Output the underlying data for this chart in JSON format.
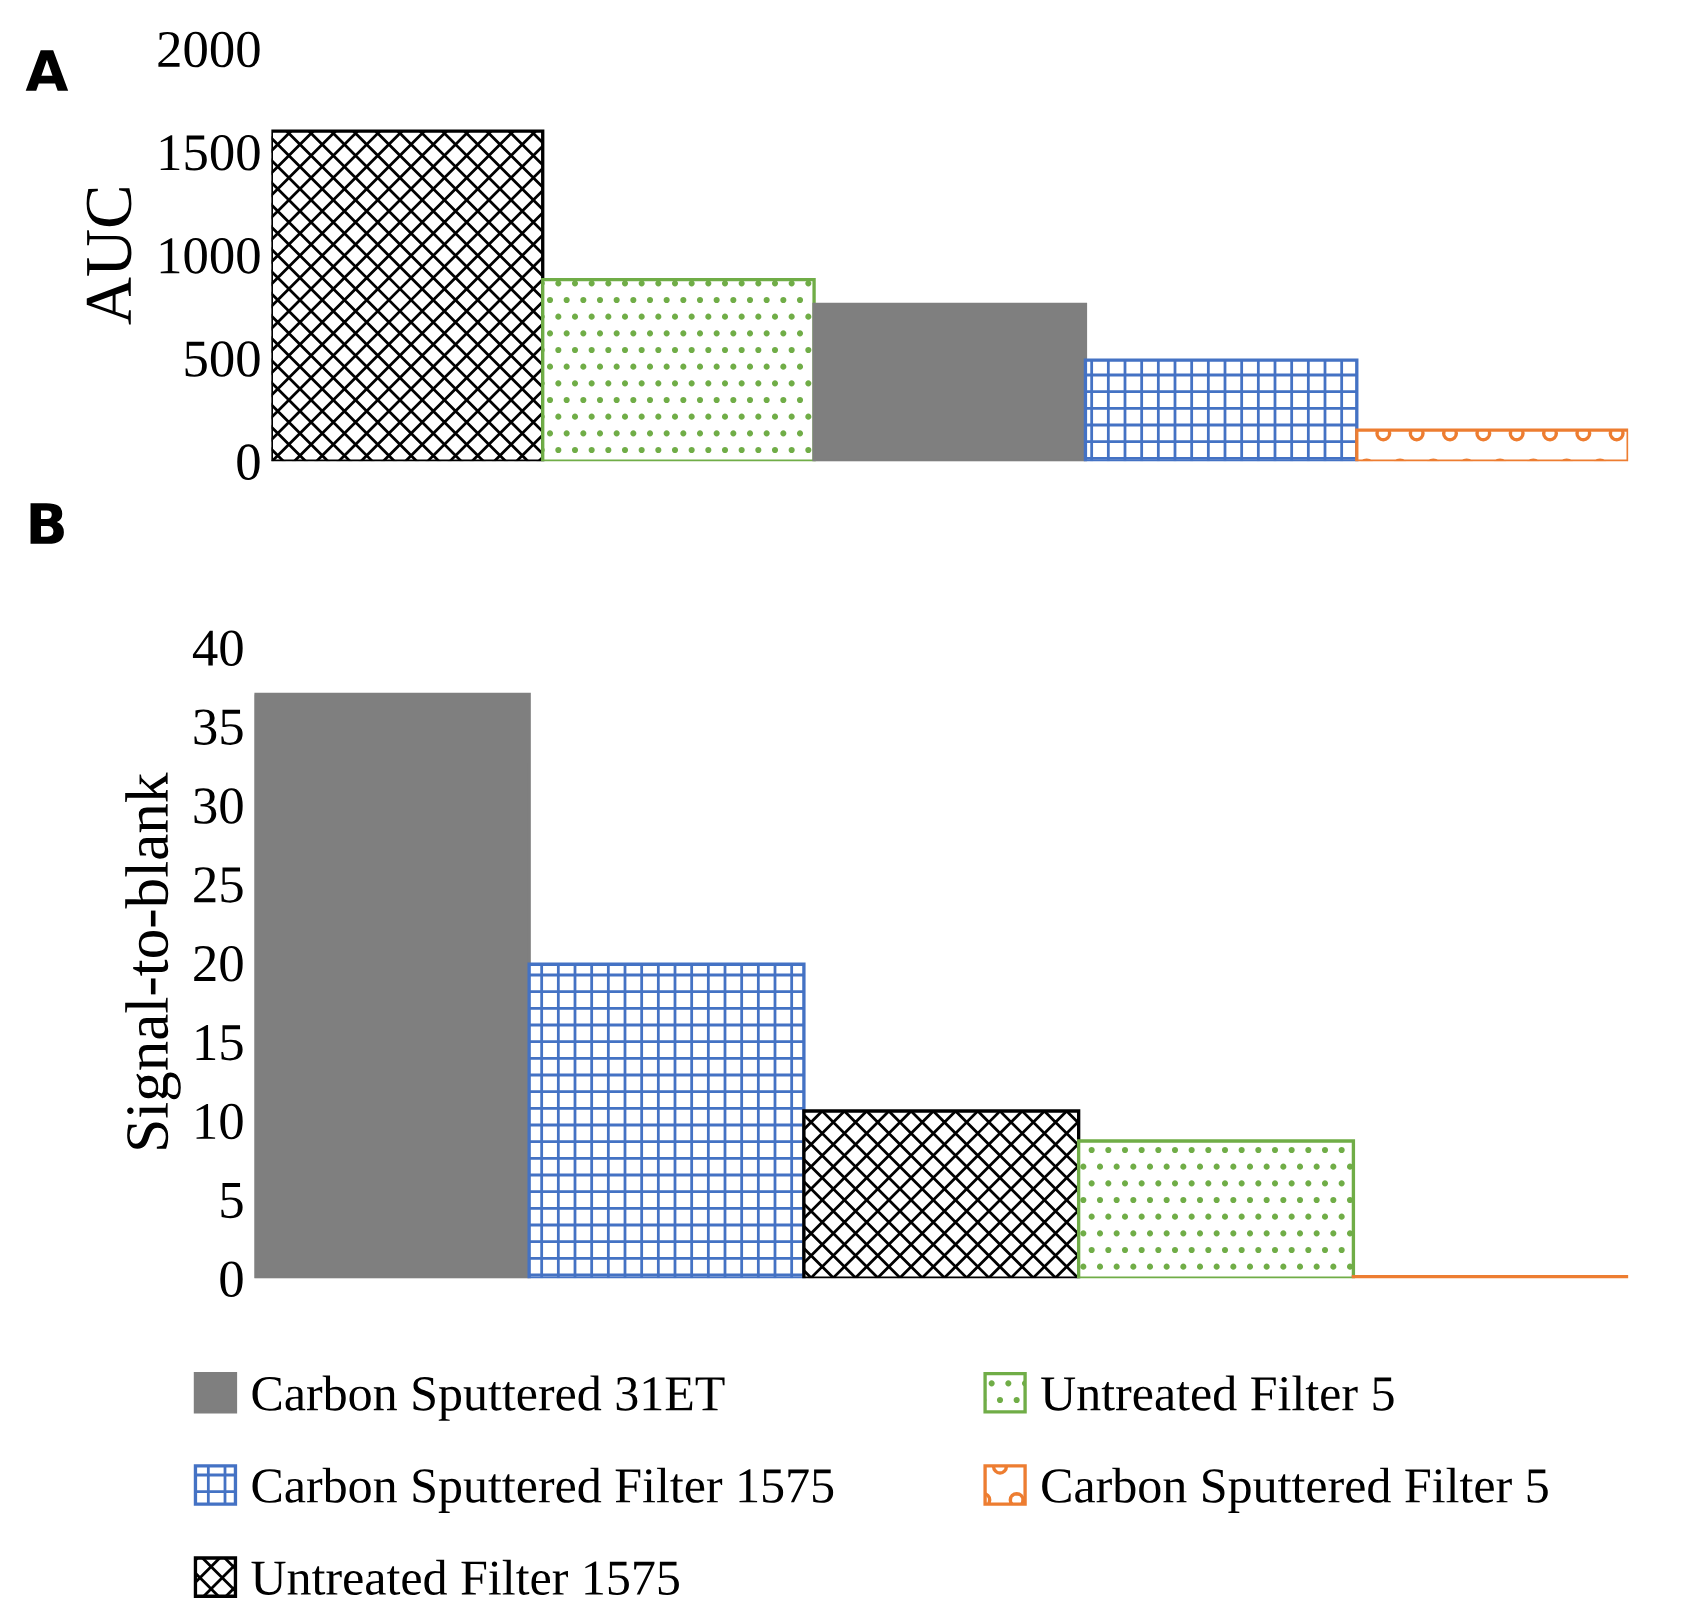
{
  "chart_data": [
    {
      "type": "bar",
      "annotations": [
        "A"
      ],
      "ylabel": "AUC",
      "legend": false,
      "ylim": [
        0,
        2000
      ],
      "yticks": [
        0,
        500,
        1000,
        1500,
        2000
      ],
      "grid": false,
      "categories": [
        null
      ],
      "series": [
        {
          "color": "#000000",
          "values": [
            1600
          ]
        },
        {
          "color": "#70ad47",
          "values": [
            880
          ]
        },
        {
          "color": "#7f7f7f",
          "values": [
            760
          ]
        },
        {
          "color": "#4472c4",
          "values": [
            490
          ]
        },
        {
          "color": "#ed7d31",
          "values": [
            150
          ]
        }
      ]
    },
    {
      "type": "bar",
      "annotations": [
        "B"
      ],
      "ylabel": "Signal-to-blank",
      "legend": "bottom",
      "ylim": [
        0,
        40
      ],
      "yticks": [
        0,
        5,
        10,
        15,
        20,
        25,
        30,
        35,
        40
      ],
      "grid": false,
      "categories": [
        null
      ],
      "series": [
        {
          "name": "Carbon Sputtered 31ET",
          "color": "#7f7f7f",
          "values": [
            37
          ]
        },
        {
          "name": "Carbon Sputtered Filter 1575",
          "color": "#4472c4",
          "values": [
            19.9
          ]
        },
        {
          "name": "Untreated Filter 1575",
          "color": "#000000",
          "values": [
            10.6
          ]
        },
        {
          "name": "Untreated Filter 5",
          "color": "#70ad47",
          "values": [
            8.7
          ]
        },
        {
          "name": "Carbon Sputtered Filter 5",
          "color": "#ed7d31",
          "values": [
            0.1
          ]
        }
      ]
    }
  ]
}
